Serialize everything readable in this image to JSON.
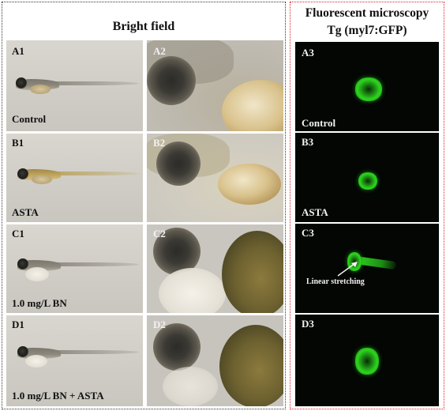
{
  "bright_field": {
    "title": "Bright field",
    "rows": [
      {
        "whole_label": "A1",
        "zoom_label": "A2",
        "condition": "Control"
      },
      {
        "whole_label": "B1",
        "zoom_label": "B2",
        "condition": "ASTA"
      },
      {
        "whole_label": "C1",
        "zoom_label": "C2",
        "condition": "1.0 mg/L BN"
      },
      {
        "whole_label": "D1",
        "zoom_label": "D2",
        "condition": "1.0 mg/L BN + ASTA"
      }
    ]
  },
  "fluorescent": {
    "title_line1": "Fluorescent microscopy",
    "title_line2": "Tg (myl7:GFP)",
    "rows": [
      {
        "label": "A3",
        "condition": "Control"
      },
      {
        "label": "B3",
        "condition": "ASTA"
      },
      {
        "label": "C3",
        "condition": ""
      },
      {
        "label": "D3",
        "condition": ""
      }
    ],
    "annotation": "Linear stretching"
  },
  "colors": {
    "bright_border": "#333333",
    "fluor_border": "#d42424",
    "gfp_green": "#2fd61f"
  }
}
